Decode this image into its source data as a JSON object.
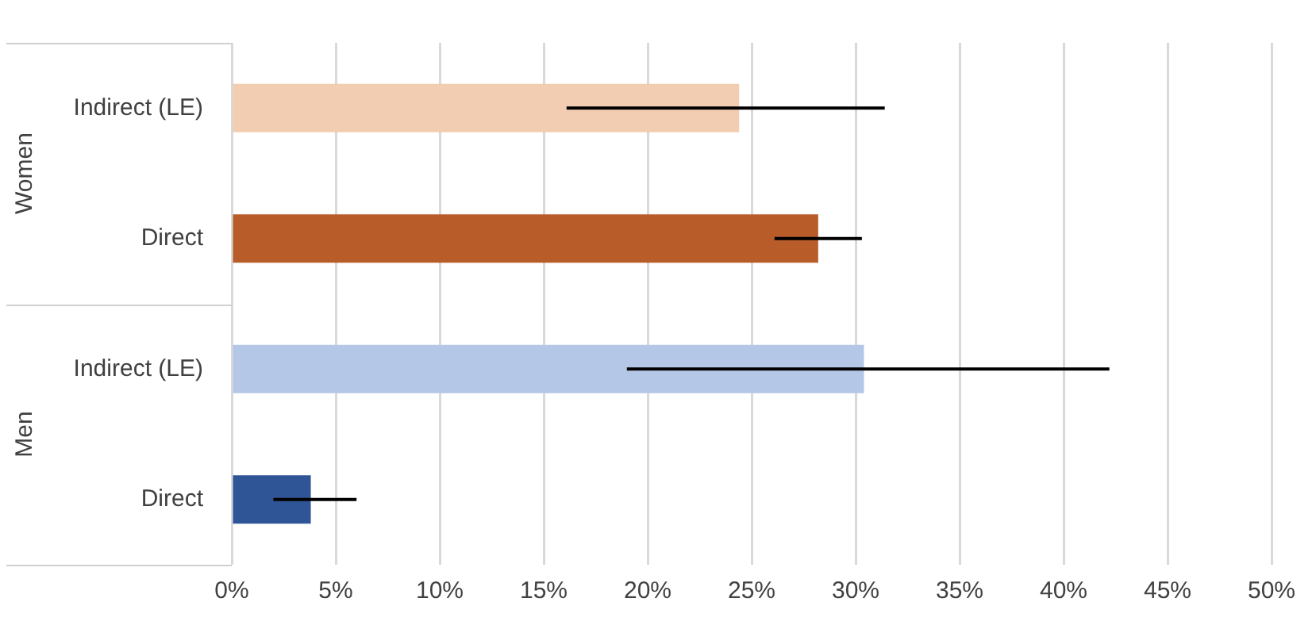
{
  "chart_data": {
    "type": "bar",
    "orientation": "horizontal",
    "categories": [
      "Indirect (LE)",
      "Direct",
      "Indirect (LE)",
      "Direct"
    ],
    "values": [
      24.4,
      28.2,
      30.4,
      3.8
    ],
    "colors": [
      "#f2cdb1",
      "#b85c2a",
      "#b4c7e7",
      "#2f5597"
    ],
    "errors": [
      [
        16.1,
        31.4
      ],
      [
        26.1,
        30.3
      ],
      [
        19.0,
        42.2
      ],
      [
        2.0,
        6.0
      ]
    ],
    "annotations": [
      "Women",
      "Men"
    ],
    "xlim": [
      0,
      50
    ],
    "xticks": [
      {
        "value": 0,
        "label": "0%"
      },
      {
        "value": 5,
        "label": "5%"
      },
      {
        "value": 10,
        "label": "10%"
      },
      {
        "value": 15,
        "label": "15%"
      },
      {
        "value": 20,
        "label": "20%"
      },
      {
        "value": 25,
        "label": "25%"
      },
      {
        "value": 30,
        "label": "30%"
      },
      {
        "value": 35,
        "label": "35%"
      },
      {
        "value": 40,
        "label": "40%"
      },
      {
        "value": 45,
        "label": "45%"
      },
      {
        "value": 50,
        "label": "50%"
      }
    ],
    "grid": "x"
  }
}
